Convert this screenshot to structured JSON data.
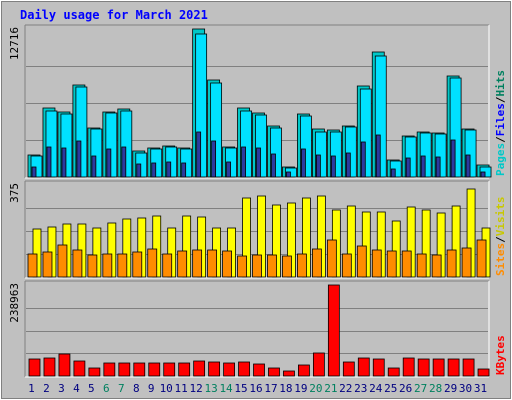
{
  "chart_data": {
    "type": "bar",
    "title": "Daily usage for March 2021",
    "days": [
      "1",
      "2",
      "3",
      "4",
      "5",
      "6",
      "7",
      "8",
      "9",
      "10",
      "11",
      "12",
      "13",
      "14",
      "15",
      "16",
      "17",
      "18",
      "19",
      "20",
      "21",
      "22",
      "23",
      "24",
      "25",
      "26",
      "27",
      "28",
      "29",
      "30",
      "31"
    ],
    "weekend_days": [
      "6",
      "7",
      "13",
      "14",
      "20",
      "21",
      "27",
      "28"
    ],
    "panels": [
      {
        "name": "pages-files-hits",
        "max_label": "12716",
        "ymax": 12716,
        "right_label": {
          "parts": [
            "Pages",
            "Files",
            "Hits"
          ],
          "separator": " / "
        },
        "series": [
          {
            "name": "Hits",
            "color": "#00c8c8",
            "values": [
              1900,
              5900,
              5600,
              7900,
              4200,
              5600,
              5800,
              2200,
              2500,
              2700,
              2500,
              12716,
              8300,
              2600,
              5900,
              5500,
              4400,
              900,
              5400,
              4100,
              4000,
              4400,
              7800,
              10700,
              1500,
              3500,
              3900,
              3800,
              8700,
              4100,
              1000
            ]
          },
          {
            "name": "Files",
            "color": "#00e1ff",
            "values": [
              1800,
              5700,
              5400,
              7700,
              4100,
              5500,
              5700,
              2100,
              2400,
              2600,
              2400,
              12300,
              8100,
              2500,
              5700,
              5300,
              4200,
              800,
              5200,
              3900,
              3900,
              4300,
              7600,
              10400,
              1400,
              3400,
              3800,
              3700,
              8500,
              4000,
              900
            ]
          },
          {
            "name": "Pages",
            "color": "#2b3a9e",
            "values": [
              900,
              2600,
              2500,
              3100,
              1800,
              2400,
              2600,
              1100,
              1200,
              1300,
              1200,
              3900,
              3100,
              1300,
              2600,
              2500,
              2000,
              400,
              2400,
              1900,
              1800,
              2100,
              3000,
              3600,
              700,
              1600,
              1800,
              1700,
              3200,
              1900,
              450
            ]
          }
        ]
      },
      {
        "name": "visits-sites",
        "max_label": "375",
        "ymax": 375,
        "right_label": {
          "parts": [
            "Sites",
            "Visits"
          ],
          "separator": " / "
        },
        "series": [
          {
            "name": "Visits",
            "color": "#ffff00",
            "values": [
              195,
              205,
              215,
              215,
              200,
              220,
              235,
              240,
              250,
              200,
              250,
              245,
              200,
              200,
              320,
              330,
              295,
              300,
              320,
              330,
              275,
              290,
              265,
              265,
              230,
              285,
              275,
              260,
              290,
              360,
              200
            ]
          },
          {
            "name": "Sites",
            "color": "#ff8c00",
            "values": [
              95,
              100,
              130,
              110,
              90,
              95,
              95,
              100,
              115,
              95,
              105,
              110,
              110,
              105,
              85,
              90,
              90,
              85,
              95,
              115,
              150,
              95,
              125,
              110,
              105,
              105,
              95,
              90,
              110,
              120,
              150
            ]
          }
        ]
      },
      {
        "name": "kbytes",
        "max_label": "238963",
        "ymax": 238963,
        "right_label": {
          "parts": [
            "KBytes"
          ],
          "separator": ""
        },
        "series": [
          {
            "name": "KBytes",
            "color": "#ff0000",
            "values": [
              45000,
              47000,
              57000,
              39000,
              20000,
              35000,
              35000,
              33000,
              35000,
              35000,
              35000,
              40000,
              37000,
              35000,
              37000,
              32000,
              22000,
              13000,
              30000,
              60000,
              238963,
              36000,
              46000,
              45000,
              21000,
              46000,
              45000,
              45000,
              45000,
              44000,
              18000
            ]
          }
        ]
      }
    ],
    "colors": {
      "title": "#0000ff",
      "axis_day": "#000080",
      "weekend_day": "#00805f",
      "label_pages": "#00c8c8",
      "label_files": "#0000ff",
      "label_hits": "#00805f",
      "label_sites": "#ff8c00",
      "label_visits": "#c8c800",
      "label_kbytes": "#ff0000"
    }
  }
}
